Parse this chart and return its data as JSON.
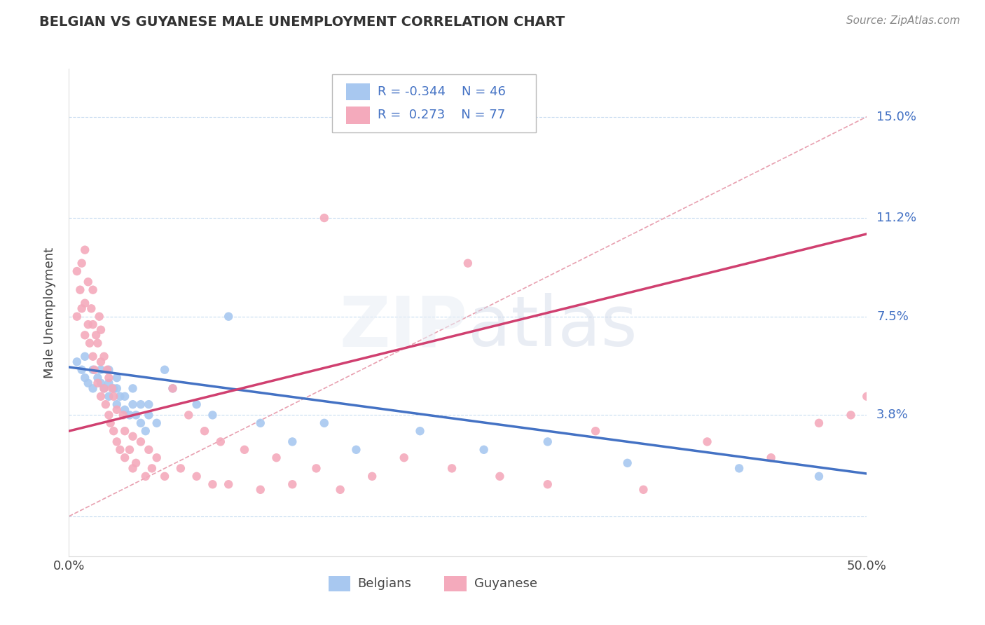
{
  "title": "BELGIAN VS GUYANESE MALE UNEMPLOYMENT CORRELATION CHART",
  "source_text": "Source: ZipAtlas.com",
  "ylabel": "Male Unemployment",
  "yticks": [
    0.0,
    0.038,
    0.075,
    0.112,
    0.15
  ],
  "ytick_labels": [
    "",
    "3.8%",
    "7.5%",
    "11.2%",
    "15.0%"
  ],
  "xmin": 0.0,
  "xmax": 0.5,
  "ymin": -0.015,
  "ymax": 0.168,
  "watermark": "ZIPAtlas",
  "legend_r_blue": "-0.344",
  "legend_n_blue": "46",
  "legend_r_pink": "0.273",
  "legend_n_pink": "77",
  "blue_color": "#A8C8F0",
  "pink_color": "#F4AABC",
  "trend_blue_color": "#4472C4",
  "trend_pink_color": "#D04070",
  "ref_line_color": "#E8A0B0",
  "grid_color": "#C8DCF0",
  "blue_scatter_x": [
    0.005,
    0.008,
    0.01,
    0.01,
    0.012,
    0.015,
    0.015,
    0.018,
    0.02,
    0.02,
    0.022,
    0.025,
    0.025,
    0.025,
    0.028,
    0.03,
    0.03,
    0.03,
    0.032,
    0.035,
    0.035,
    0.038,
    0.04,
    0.04,
    0.042,
    0.045,
    0.045,
    0.048,
    0.05,
    0.05,
    0.055,
    0.06,
    0.065,
    0.08,
    0.09,
    0.1,
    0.12,
    0.14,
    0.16,
    0.18,
    0.22,
    0.26,
    0.3,
    0.35,
    0.42,
    0.47
  ],
  "blue_scatter_y": [
    0.058,
    0.055,
    0.052,
    0.06,
    0.05,
    0.048,
    0.055,
    0.052,
    0.05,
    0.055,
    0.048,
    0.045,
    0.05,
    0.055,
    0.048,
    0.042,
    0.048,
    0.052,
    0.045,
    0.04,
    0.045,
    0.038,
    0.042,
    0.048,
    0.038,
    0.035,
    0.042,
    0.032,
    0.038,
    0.042,
    0.035,
    0.055,
    0.048,
    0.042,
    0.038,
    0.075,
    0.035,
    0.028,
    0.035,
    0.025,
    0.032,
    0.025,
    0.028,
    0.02,
    0.018,
    0.015
  ],
  "pink_scatter_x": [
    0.005,
    0.005,
    0.007,
    0.008,
    0.008,
    0.01,
    0.01,
    0.01,
    0.012,
    0.012,
    0.013,
    0.014,
    0.015,
    0.015,
    0.015,
    0.016,
    0.017,
    0.018,
    0.018,
    0.019,
    0.02,
    0.02,
    0.02,
    0.022,
    0.022,
    0.023,
    0.024,
    0.025,
    0.025,
    0.026,
    0.027,
    0.028,
    0.028,
    0.03,
    0.03,
    0.032,
    0.034,
    0.035,
    0.035,
    0.038,
    0.04,
    0.04,
    0.042,
    0.045,
    0.048,
    0.05,
    0.052,
    0.055,
    0.06,
    0.065,
    0.07,
    0.075,
    0.08,
    0.085,
    0.09,
    0.095,
    0.1,
    0.11,
    0.12,
    0.13,
    0.14,
    0.155,
    0.17,
    0.19,
    0.21,
    0.24,
    0.27,
    0.3,
    0.33,
    0.36,
    0.4,
    0.44,
    0.47,
    0.49,
    0.5,
    0.16,
    0.25
  ],
  "pink_scatter_y": [
    0.075,
    0.092,
    0.085,
    0.078,
    0.095,
    0.068,
    0.08,
    0.1,
    0.072,
    0.088,
    0.065,
    0.078,
    0.06,
    0.072,
    0.085,
    0.055,
    0.068,
    0.05,
    0.065,
    0.075,
    0.045,
    0.058,
    0.07,
    0.048,
    0.06,
    0.042,
    0.055,
    0.038,
    0.052,
    0.035,
    0.048,
    0.032,
    0.045,
    0.028,
    0.04,
    0.025,
    0.038,
    0.022,
    0.032,
    0.025,
    0.018,
    0.03,
    0.02,
    0.028,
    0.015,
    0.025,
    0.018,
    0.022,
    0.015,
    0.048,
    0.018,
    0.038,
    0.015,
    0.032,
    0.012,
    0.028,
    0.012,
    0.025,
    0.01,
    0.022,
    0.012,
    0.018,
    0.01,
    0.015,
    0.022,
    0.018,
    0.015,
    0.012,
    0.032,
    0.01,
    0.028,
    0.022,
    0.035,
    0.038,
    0.045,
    0.112,
    0.095
  ],
  "blue_trend_x": [
    0.0,
    0.5
  ],
  "blue_trend_y": [
    0.056,
    0.016
  ],
  "pink_trend_x": [
    0.0,
    0.5
  ],
  "pink_trend_y": [
    0.032,
    0.106
  ],
  "ref_line_x": [
    0.0,
    0.5
  ],
  "ref_line_y": [
    0.0,
    0.15
  ]
}
